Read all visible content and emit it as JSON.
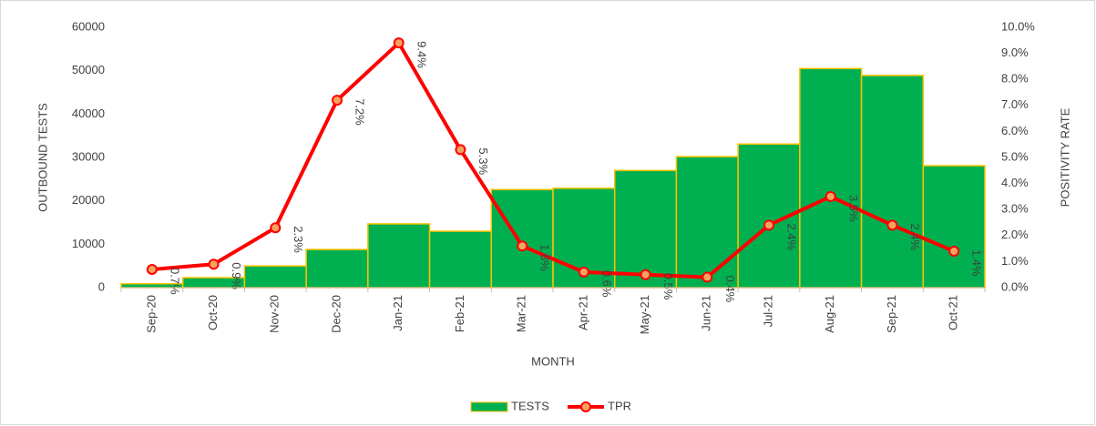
{
  "chart_data": {
    "type": "bar_line",
    "x_label": "MONTH",
    "y_label": "OUTBOUND TESTS",
    "y2_label": "POSITIVITY RATE",
    "categories": [
      "Sep-20",
      "Oct-20",
      "Nov-20",
      "Dec-20",
      "Jan-21",
      "Feb-21",
      "Mar-21",
      "Apr-21",
      "May-21",
      "Jun-21",
      "Jul-21",
      "Aug-21",
      "Sep-21",
      "Oct-21"
    ],
    "series": [
      {
        "name": "TESTS",
        "type": "bar",
        "color": "#00b050",
        "edge_color": "#ffc000",
        "values": [
          900,
          2300,
          5000,
          8800,
          14700,
          13000,
          22600,
          22900,
          27000,
          30200,
          33100,
          50500,
          48900,
          28100
        ]
      },
      {
        "name": "TPR",
        "type": "line",
        "axis": "y2",
        "color": "#ff0000",
        "marker_color": "#f4a460",
        "values": [
          0.7,
          0.9,
          2.3,
          7.2,
          9.4,
          5.3,
          1.6,
          0.6,
          0.5,
          0.4,
          2.4,
          3.5,
          2.4,
          1.4
        ],
        "value_labels": [
          "0.7%",
          "0.9%",
          "2.3%",
          "7.2%",
          "9.4%",
          "5.3%",
          "1.6%",
          "0.6%",
          "0.5%",
          "0.4%",
          "2.4%",
          "3.5%",
          "2.4%",
          "1.4%"
        ]
      }
    ],
    "ylim": [
      0,
      60000
    ],
    "yticks": [
      0,
      10000,
      20000,
      30000,
      40000,
      50000,
      60000
    ],
    "y2lim": [
      0,
      10
    ],
    "y2ticks": [
      {
        "value": 0,
        "label": "0.0%"
      },
      {
        "value": 1,
        "label": "1.0%"
      },
      {
        "value": 2,
        "label": "2.0%"
      },
      {
        "value": 3,
        "label": "3.0%"
      },
      {
        "value": 4,
        "label": "4.0%"
      },
      {
        "value": 5,
        "label": "5.0%"
      },
      {
        "value": 6,
        "label": "6.0%"
      },
      {
        "value": 7,
        "label": "7.0%"
      },
      {
        "value": 8,
        "label": "8.0%"
      },
      {
        "value": 9,
        "label": "9.0%"
      },
      {
        "value": 10,
        "label": "10.0%"
      }
    ],
    "legend": "bottom"
  }
}
